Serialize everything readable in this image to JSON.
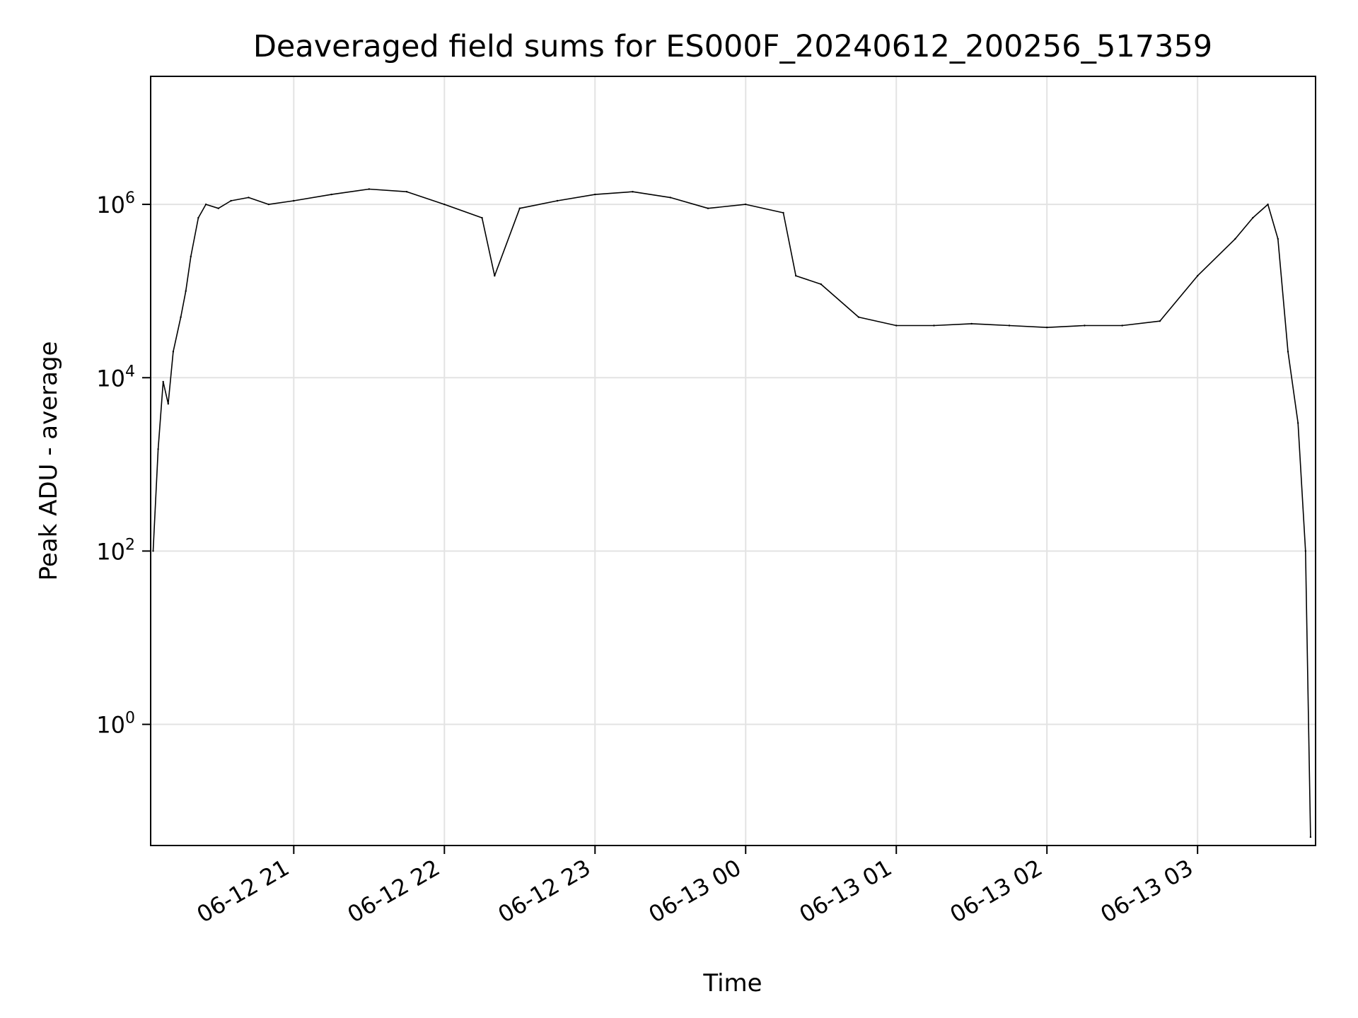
{
  "chart_data": {
    "type": "line",
    "title": "Deaveraged field sums for ES000F_20240612_200256_517359",
    "xlabel": "Time",
    "ylabel": "Peak ADU - average",
    "y_scale": "log",
    "ylim": [
      0.04,
      30000000
    ],
    "xlim": [
      "2024-06-12 20:03",
      "2024-06-13 03:47"
    ],
    "grid": true,
    "line_color": "#000000",
    "x_ticks": [
      {
        "value": "2024-06-12 21:00",
        "label": "06-12 21"
      },
      {
        "value": "2024-06-12 22:00",
        "label": "06-12 22"
      },
      {
        "value": "2024-06-12 23:00",
        "label": "06-12 23"
      },
      {
        "value": "2024-06-13 00:00",
        "label": "06-13 00"
      },
      {
        "value": "2024-06-13 01:00",
        "label": "06-13 01"
      },
      {
        "value": "2024-06-13 02:00",
        "label": "06-13 02"
      },
      {
        "value": "2024-06-13 03:00",
        "label": "06-13 03"
      }
    ],
    "y_ticks": [
      {
        "value": 1,
        "base": "10",
        "exp": "0"
      },
      {
        "value": 100,
        "base": "10",
        "exp": "2"
      },
      {
        "value": 10000,
        "base": "10",
        "exp": "4"
      },
      {
        "value": 1000000,
        "base": "10",
        "exp": "6"
      }
    ],
    "series": [
      {
        "x": [
          "2024-06-12 20:04",
          "2024-06-12 20:06",
          "2024-06-12 20:08",
          "2024-06-12 20:10",
          "2024-06-12 20:12",
          "2024-06-12 20:15",
          "2024-06-12 20:17",
          "2024-06-12 20:19",
          "2024-06-12 20:22",
          "2024-06-12 20:25",
          "2024-06-12 20:30",
          "2024-06-12 20:35",
          "2024-06-12 20:42",
          "2024-06-12 20:50",
          "2024-06-12 21:00",
          "2024-06-12 21:15",
          "2024-06-12 21:30",
          "2024-06-12 21:45",
          "2024-06-12 22:00",
          "2024-06-12 22:15",
          "2024-06-12 22:20",
          "2024-06-12 22:30",
          "2024-06-12 22:45",
          "2024-06-12 23:00",
          "2024-06-12 23:15",
          "2024-06-12 23:30",
          "2024-06-12 23:45",
          "2024-06-13 00:00",
          "2024-06-13 00:15",
          "2024-06-13 00:20",
          "2024-06-13 00:30",
          "2024-06-13 00:45",
          "2024-06-13 01:00",
          "2024-06-13 01:15",
          "2024-06-13 01:30",
          "2024-06-13 01:45",
          "2024-06-13 02:00",
          "2024-06-13 02:15",
          "2024-06-13 02:30",
          "2024-06-13 02:45",
          "2024-06-13 03:00",
          "2024-06-13 03:15",
          "2024-06-13 03:22",
          "2024-06-13 03:28",
          "2024-06-13 03:32",
          "2024-06-13 03:36",
          "2024-06-13 03:40",
          "2024-06-13 03:43",
          "2024-06-13 03:45"
        ],
        "y": [
          100,
          1500,
          9000,
          5000,
          20000,
          50000,
          100000,
          250000,
          700000,
          1000000,
          900000,
          1100000,
          1200000,
          1000000,
          1100000,
          1300000,
          1500000,
          1400000,
          1000000,
          700000,
          150000,
          900000,
          1100000,
          1300000,
          1400000,
          1200000,
          900000,
          1000000,
          800000,
          150000,
          120000,
          50000,
          40000,
          40000,
          42000,
          40000,
          38000,
          40000,
          40000,
          45000,
          150000,
          400000,
          700000,
          1000000,
          400000,
          20000,
          3000,
          100,
          0.05
        ]
      }
    ]
  }
}
